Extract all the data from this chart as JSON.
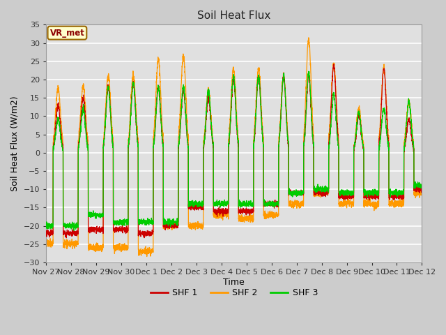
{
  "title": "Soil Heat Flux",
  "xlabel": "Time",
  "ylabel": "Soil Heat Flux (W/m2)",
  "ylim": [
    -30,
    35
  ],
  "yticks": [
    -30,
    -25,
    -20,
    -15,
    -10,
    -5,
    0,
    5,
    10,
    15,
    20,
    25,
    30,
    35
  ],
  "xtick_labels": [
    "Nov 27",
    "Nov 28",
    "Nov 29",
    "Nov 30",
    "Dec 1",
    "Dec 2",
    "Dec 3",
    "Dec 4",
    "Dec 5",
    "Dec 6",
    "Dec 7",
    "Dec 8",
    "Dec 9",
    "Dec 10",
    "Dec 11",
    "Dec 12"
  ],
  "legend_labels": [
    "SHF 1",
    "SHF 2",
    "SHF 3"
  ],
  "colors": [
    "#cc0000",
    "#ff9900",
    "#00cc00"
  ],
  "annotation_text": "VR_met",
  "annotation_bg": "#ffffcc",
  "annotation_border": "#996600",
  "fig_bg": "#cccccc",
  "plot_bg": "#e0e0e0",
  "grid_color": "#ffffff",
  "n_points": 3600,
  "peak_amps_shf2": [
    17.5,
    18,
    21,
    21,
    25.5,
    26.5,
    17,
    23,
    23,
    21,
    31,
    24,
    12,
    23,
    14,
    0
  ],
  "peak_amps_shf1": [
    13,
    15,
    18,
    19,
    18,
    17,
    15,
    20,
    21,
    21,
    21,
    24,
    10,
    23,
    9,
    0
  ],
  "peak_amps_shf3": [
    9,
    12,
    18,
    19,
    18,
    18,
    17,
    21,
    21,
    21,
    22,
    16,
    11,
    12,
    14,
    0
  ],
  "night_base_shf1": [
    -22,
    -21,
    -21,
    -22,
    -20,
    -15,
    -16,
    -16,
    -14,
    -11,
    -11,
    -12,
    -12,
    -12,
    -10,
    -10
  ],
  "night_base_shf2": [
    -25,
    -26,
    -26,
    -27,
    -20,
    -20,
    -17,
    -18,
    -17,
    -14,
    -11,
    -14,
    -14,
    -14,
    -11,
    -11
  ],
  "night_base_shf3": [
    -20,
    -17,
    -19,
    -19,
    -19,
    -14,
    -14,
    -14,
    -14,
    -11,
    -10,
    -11,
    -11,
    -11,
    -9,
    -9
  ]
}
